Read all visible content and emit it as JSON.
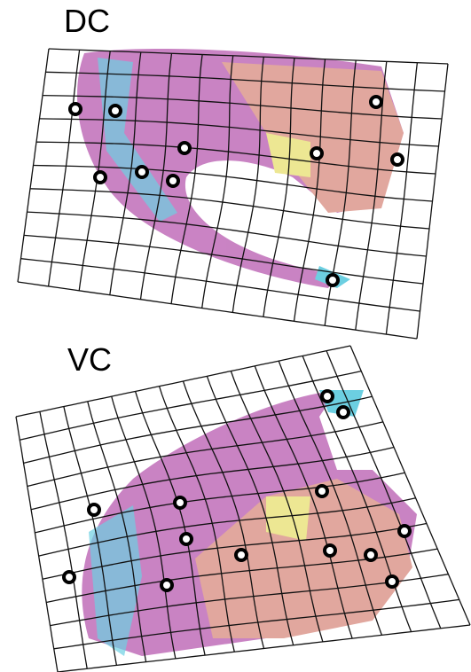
{
  "panels": [
    {
      "label": "DC"
    },
    {
      "label": "VC"
    }
  ]
}
